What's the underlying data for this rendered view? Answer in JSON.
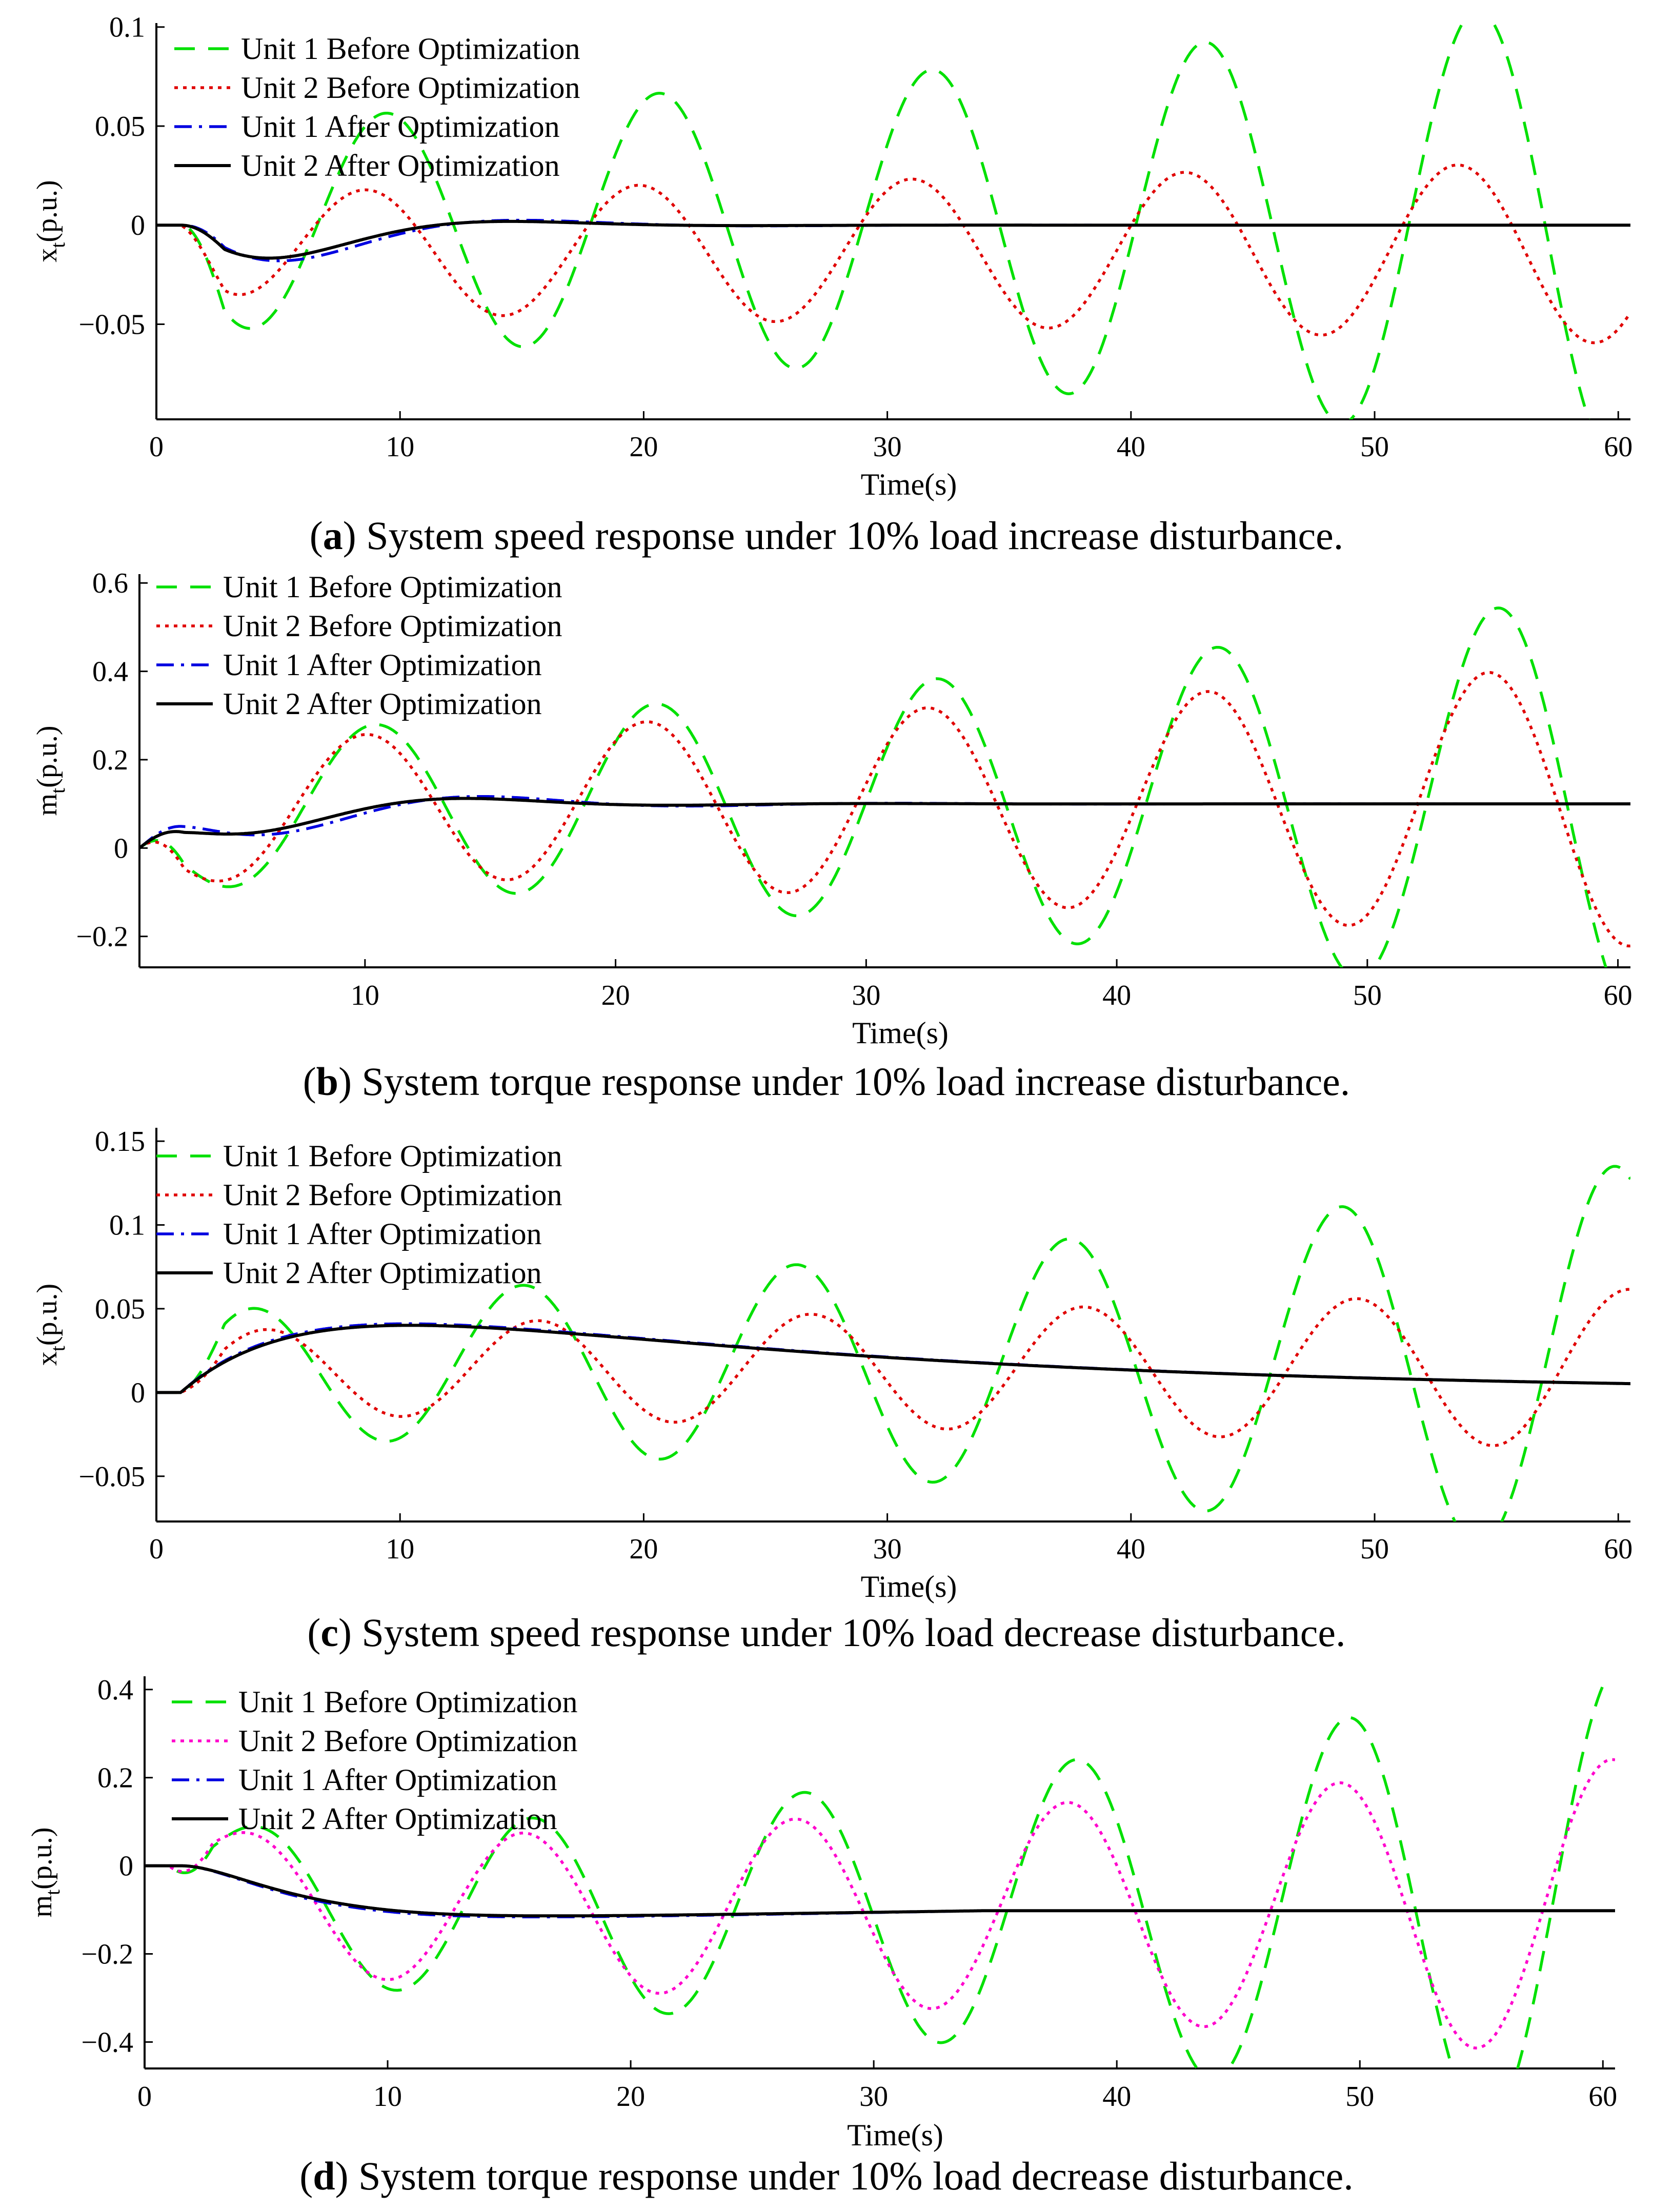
{
  "legend_labels": [
    "Unit 1 Before Optimization",
    "Unit 2 Before Optimization",
    "Unit 1 After Optimization",
    "Unit 2 After Optimization"
  ],
  "chart_data": [
    {
      "type": "line",
      "caption_letter": "a",
      "title": "System speed response under 10% load increase disturbance.",
      "xlabel": "Time(s)",
      "ylabel_main": "x",
      "ylabel_sub": "t",
      "ylabel_unit": "(p.u.)",
      "xlim": [
        0,
        60.5
      ],
      "ylim": [
        -0.098,
        0.102
      ],
      "xticks": [
        0,
        10,
        20,
        30,
        40,
        50,
        60
      ],
      "xtick_labels": [
        "0",
        "10",
        "20",
        "30",
        "40",
        "50",
        "60"
      ],
      "yticks": [
        -0.05,
        0,
        0.05,
        0.1
      ],
      "ytick_labels": [
        "−0.05",
        "0",
        "0.05",
        "0.1"
      ],
      "series": [
        {
          "name": "Unit 1 Before Optimization",
          "color": "#00e000",
          "dash": "dashed",
          "model": {
            "t0": 1.0,
            "offset": 0,
            "a0": 0.05,
            "a1": 0.0465,
            "r": 0.0146,
            "T": 11.2,
            "phi": 3.1416
          }
        },
        {
          "name": "Unit 2 Before Optimization",
          "color": "#e00000",
          "dash": "dotted",
          "model": {
            "t0": 1.0,
            "offset": -0.0135,
            "a0": 0.029,
            "a1": 0.0425,
            "r": 0.0079,
            "T": 11.2,
            "phi": 3.6
          }
        },
        {
          "name": "Unit 1 After Optimization",
          "color": "#0000e0",
          "dash": "dashdot",
          "model": {
            "t0": 1.0,
            "offset": 0,
            "a0": 0.048,
            "a1": 0.048,
            "r": -0.2,
            "T": 19.5,
            "phi": 2.8
          }
        },
        {
          "name": "Unit 2 After Optimization",
          "color": "#000000",
          "dash": "solid",
          "model": {
            "t0": 1.0,
            "offset": 0,
            "a0": 0.045,
            "a1": 0.045,
            "r": -0.22,
            "T": 19.5,
            "phi": 2.9
          }
        }
      ]
    },
    {
      "type": "line",
      "caption_letter": "b",
      "title": "System torque response under 10% load increase disturbance.",
      "xlabel": "Time(s)",
      "ylabel_main": "m",
      "ylabel_sub": "t",
      "ylabel_unit": "(p.u.)",
      "xlim": [
        1,
        60.5
      ],
      "ylim": [
        -0.27,
        0.62
      ],
      "xticks": [
        10,
        20,
        30,
        40,
        50,
        60
      ],
      "xtick_labels": [
        "10",
        "20",
        "30",
        "40",
        "50",
        "60"
      ],
      "yticks": [
        -0.2,
        0,
        0.2,
        0.4,
        0.6
      ],
      "ytick_labels": [
        "−0.2",
        "0",
        "0.2",
        "0.4",
        "0.6"
      ],
      "series": [
        {
          "name": "Unit 1 Before Optimization",
          "color": "#00e000",
          "dash": "dashed",
          "model": {
            "t0": 1.0,
            "offset": 0.1,
            "a0": 0.15,
            "a1": 0.5,
            "r": 0.02,
            "T": 11.2,
            "phi": 2.6
          }
        },
        {
          "name": "Unit 2 Before Optimization",
          "color": "#e00000",
          "dash": "dotted",
          "model": {
            "t0": 1.0,
            "offset": 0.1,
            "a0": 0.14,
            "a1": 0.31,
            "r": 0.014,
            "T": 11.2,
            "phi": 2.8
          }
        },
        {
          "name": "Unit 1 After Optimization",
          "color": "#0000e0",
          "dash": "dashdot",
          "model": {
            "t0": 1.0,
            "offset": 0.1,
            "a0": 0.14,
            "a1": 0.14,
            "r": -0.15,
            "T": 16.5,
            "phi": 2.3
          }
        },
        {
          "name": "Unit 2 After Optimization",
          "color": "#000000",
          "dash": "solid",
          "model": {
            "t0": 1.0,
            "offset": 0.1,
            "a0": 0.125,
            "a1": 0.125,
            "r": -0.17,
            "T": 16.5,
            "phi": 2.5
          }
        }
      ]
    },
    {
      "type": "line",
      "caption_letter": "c",
      "title": "System speed response under 10% load decrease disturbance.",
      "xlabel": "Time(s)",
      "ylabel_main": "x",
      "ylabel_sub": "t",
      "ylabel_unit": "(p.u.)",
      "xlim": [
        0,
        60.5
      ],
      "ylim": [
        -0.077,
        0.158
      ],
      "xticks": [
        0,
        10,
        20,
        30,
        40,
        50,
        60
      ],
      "xtick_labels": [
        "0",
        "10",
        "20",
        "30",
        "40",
        "50",
        "60"
      ],
      "yticks": [
        -0.05,
        0,
        0.05,
        0.1,
        0.15
      ],
      "ytick_labels": [
        "−0.05",
        "0",
        "0.05",
        "0.1",
        "0.15"
      ],
      "series": [
        {
          "name": "Unit 1 Before Optimization",
          "color": "#00e000",
          "dash": "dashed",
          "model": {
            "t0": 1.0,
            "offset": 0.015,
            "a0": 0.037,
            "a1": 0.09,
            "r": 0.02,
            "T": 11.2,
            "phi": 0
          }
        },
        {
          "name": "Unit 2 Before Optimization",
          "color": "#e00000",
          "dash": "dotted",
          "model": {
            "t0": 1.0,
            "offset": 0.0135,
            "a0": 0.025,
            "a1": 0.047,
            "r": 0.011,
            "T": 11.2,
            "phi": -0.35
          }
        },
        {
          "name": "Unit 1 After Optimization",
          "color": "#0000e0",
          "dash": "dashdot",
          "model": {
            "type": "rise",
            "t0": 1.0,
            "A": 0.0515,
            "k": 0.165,
            "d": 0.0455
          }
        },
        {
          "name": "Unit 2 After Optimization",
          "color": "#000000",
          "dash": "solid",
          "model": {
            "type": "rise",
            "t0": 1.0,
            "A": 0.051,
            "k": 0.16,
            "d": 0.0455
          }
        }
      ]
    },
    {
      "type": "line",
      "caption_letter": "d",
      "title": "System torque response under 10% load decrease disturbance.",
      "xlabel": "Time(s)",
      "ylabel_main": "m",
      "ylabel_sub": "t",
      "ylabel_unit": "(p.u.)",
      "xlim": [
        0,
        60.5
      ],
      "ylim": [
        -0.46,
        0.43
      ],
      "xticks": [
        0,
        10,
        20,
        30,
        40,
        50,
        60
      ],
      "xtick_labels": [
        "0",
        "10",
        "20",
        "30",
        "40",
        "50",
        "60"
      ],
      "yticks": [
        -0.4,
        -0.2,
        0,
        0.2,
        0.4
      ],
      "ytick_labels": [
        "−0.4",
        "−0.2",
        "0",
        "0.2",
        "0.4"
      ],
      "series": [
        {
          "name": "Unit 1 Before Optimization",
          "color": "#00e000",
          "dash": "dashed",
          "model": {
            "t0": 1.0,
            "offset": -0.1,
            "a0": 0.15,
            "a1": 0.52,
            "r": 0.022,
            "T": 11.2,
            "phi": -0.5
          }
        },
        {
          "name": "Unit 2 Before Optimization",
          "color": "#ff00cc",
          "dash": "dotted",
          "model": {
            "t0": 1.0,
            "offset": -0.1,
            "a0": 0.14,
            "a1": 0.32,
            "r": 0.015,
            "T": 11.2,
            "phi": -0.3
          }
        },
        {
          "name": "Unit 1 After Optimization",
          "color": "#0000e0",
          "dash": "dashdot",
          "model": {
            "type": "fall",
            "t0": 1.5,
            "A": 0.125,
            "tau": 3.5,
            "final": 0.102,
            "settle": 25
          }
        },
        {
          "name": "Unit 2 After Optimization",
          "color": "#000000",
          "dash": "solid",
          "model": {
            "type": "fall",
            "t0": 1.5,
            "A": 0.122,
            "tau": 3.6,
            "final": 0.102,
            "settle": 25
          }
        }
      ]
    }
  ]
}
